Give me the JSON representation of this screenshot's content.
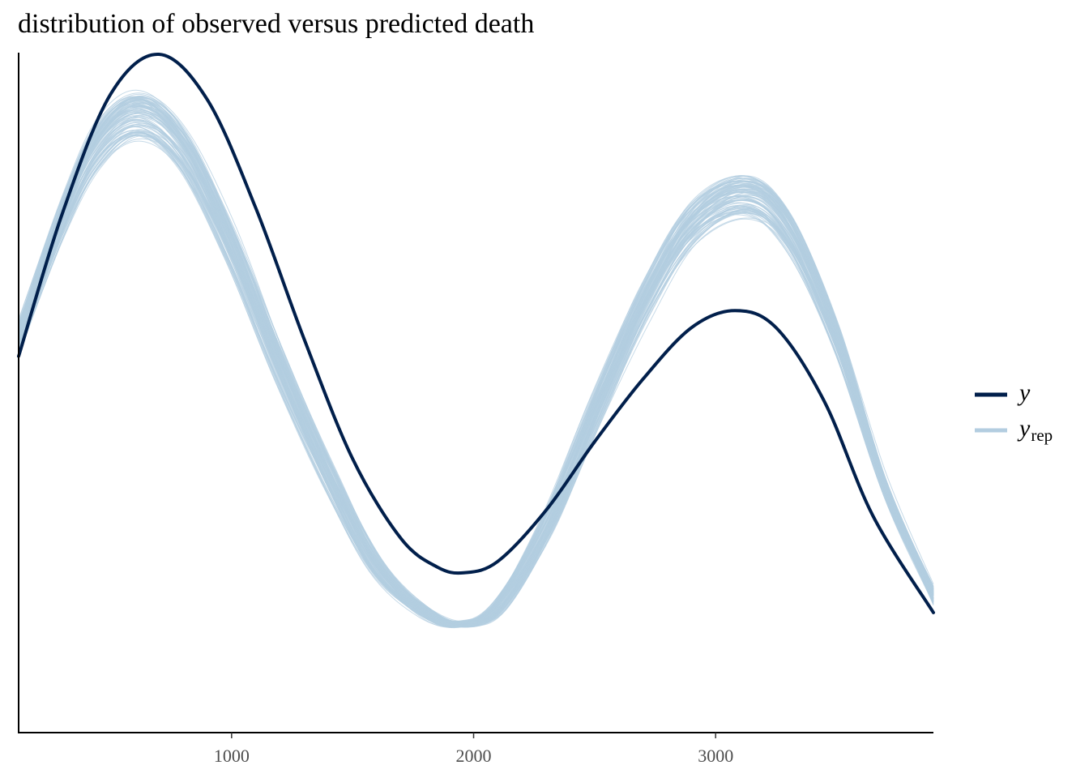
{
  "chart_data": {
    "type": "line",
    "title": "distribution of observed versus predicted death",
    "xlabel": "",
    "ylabel": "",
    "xlim": [
      120,
      3900
    ],
    "x_ticks": [
      1000,
      2000,
      3000
    ],
    "x_tick_labels": [
      "1000",
      "2000",
      "3000"
    ],
    "y_axis_ticks_shown": false,
    "grid": false,
    "legend_position": "right",
    "colors": {
      "y": "#011f4b",
      "y_rep": "#b3cde0",
      "axis": "#000000"
    },
    "series": [
      {
        "name": "y",
        "role": "observed density",
        "x": [
          120,
          300,
          500,
          700,
          900,
          1100,
          1300,
          1500,
          1700,
          1850,
          1960,
          2100,
          2300,
          2500,
          2700,
          2900,
          3080,
          3250,
          3450,
          3650,
          3900
        ],
        "y": [
          0.47,
          0.72,
          0.93,
          1.0,
          0.92,
          0.73,
          0.5,
          0.29,
          0.15,
          0.1,
          0.09,
          0.11,
          0.2,
          0.32,
          0.43,
          0.52,
          0.55,
          0.52,
          0.39,
          0.19,
          0.02
        ]
      },
      {
        "name": "y_rep",
        "role": "replicated densities (many draws)",
        "n_draws": 100,
        "x": [
          120,
          300,
          450,
          620,
          800,
          1000,
          1200,
          1400,
          1600,
          1800,
          1950,
          2100,
          2300,
          2500,
          2700,
          2900,
          3120,
          3300,
          3500,
          3700,
          3900
        ],
        "y": [
          0.5,
          0.71,
          0.84,
          0.89,
          0.83,
          0.66,
          0.45,
          0.26,
          0.1,
          0.02,
          0.0,
          0.03,
          0.17,
          0.37,
          0.56,
          0.7,
          0.75,
          0.69,
          0.5,
          0.24,
          0.05
        ]
      }
    ]
  }
}
